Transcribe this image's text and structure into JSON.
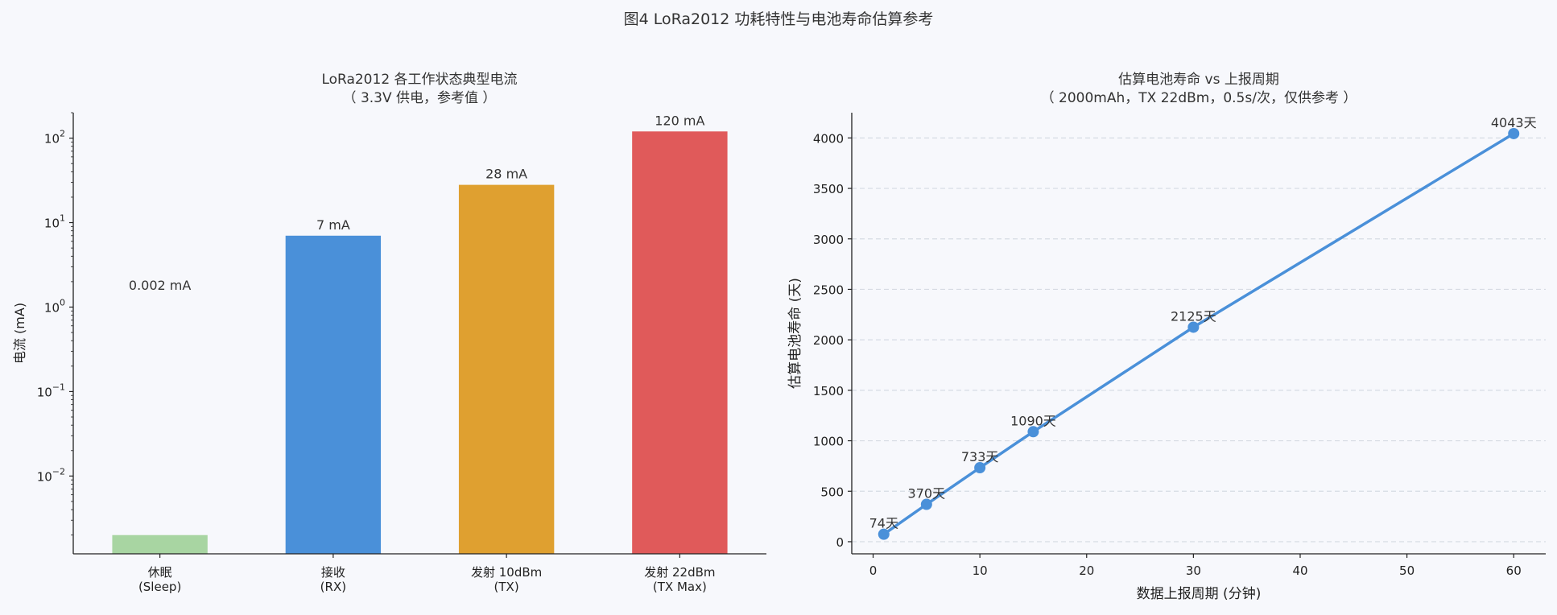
{
  "figure_title": "图4  LoRa2012 功耗特性与电池寿命估算参考",
  "colors": {
    "background": "#f7f8fc",
    "text": "#333333",
    "axis": "#222222",
    "grid": "#d6dbe3",
    "line": "#4a90d9"
  },
  "chart_data": [
    {
      "type": "bar",
      "title": [
        "LoRa2012 各工作状态典型电流",
        "（ 3.3V 供电，参考值 ）"
      ],
      "xlabel": "",
      "ylabel": "电流 (mA)",
      "yscale": "log",
      "ylim": [
        0.0012,
        200
      ],
      "yticks": [
        {
          "value": 0.01,
          "base": "10",
          "exp": "−2"
        },
        {
          "value": 0.1,
          "base": "10",
          "exp": "−1"
        },
        {
          "value": 1,
          "base": "10",
          "exp": "0"
        },
        {
          "value": 10,
          "base": "10",
          "exp": "1"
        },
        {
          "value": 100,
          "base": "10",
          "exp": "2"
        }
      ],
      "categories": [
        [
          "休眠",
          "(Sleep)"
        ],
        [
          "接收",
          "(RX)"
        ],
        [
          "发射 10dBm",
          "(TX)"
        ],
        [
          "发射 22dBm",
          "(TX Max)"
        ]
      ],
      "values": [
        0.002,
        7,
        28,
        120
      ],
      "data_labels": [
        "0.002 mA",
        "7 mA",
        "28 mA",
        "120 mA"
      ],
      "colors": [
        "#a8d5a2",
        "#4a90d9",
        "#dfa030",
        "#e05a5a"
      ],
      "grid": false
    },
    {
      "type": "line",
      "title": [
        "估算电池寿命 vs 上报周期",
        "（ 2000mAh，TX 22dBm，0.5s/次，仅供参考 ）"
      ],
      "xlabel": "数据上报周期 (分钟)",
      "ylabel": "估算电池寿命 (天)",
      "xlim": [
        -2,
        63
      ],
      "ylim": [
        -120,
        4250
      ],
      "xticks": [
        0,
        10,
        20,
        30,
        40,
        50,
        60
      ],
      "yticks": [
        0,
        500,
        1000,
        1500,
        2000,
        2500,
        3000,
        3500,
        4000
      ],
      "x": [
        1,
        5,
        10,
        15,
        30,
        60
      ],
      "y": [
        74,
        370,
        733,
        1090,
        2125,
        4043
      ],
      "data_labels": [
        "74天",
        "370天",
        "733天",
        "1090天",
        "2125天",
        "4043天"
      ],
      "color": "#4a90d9",
      "grid": "y-dashed"
    }
  ]
}
